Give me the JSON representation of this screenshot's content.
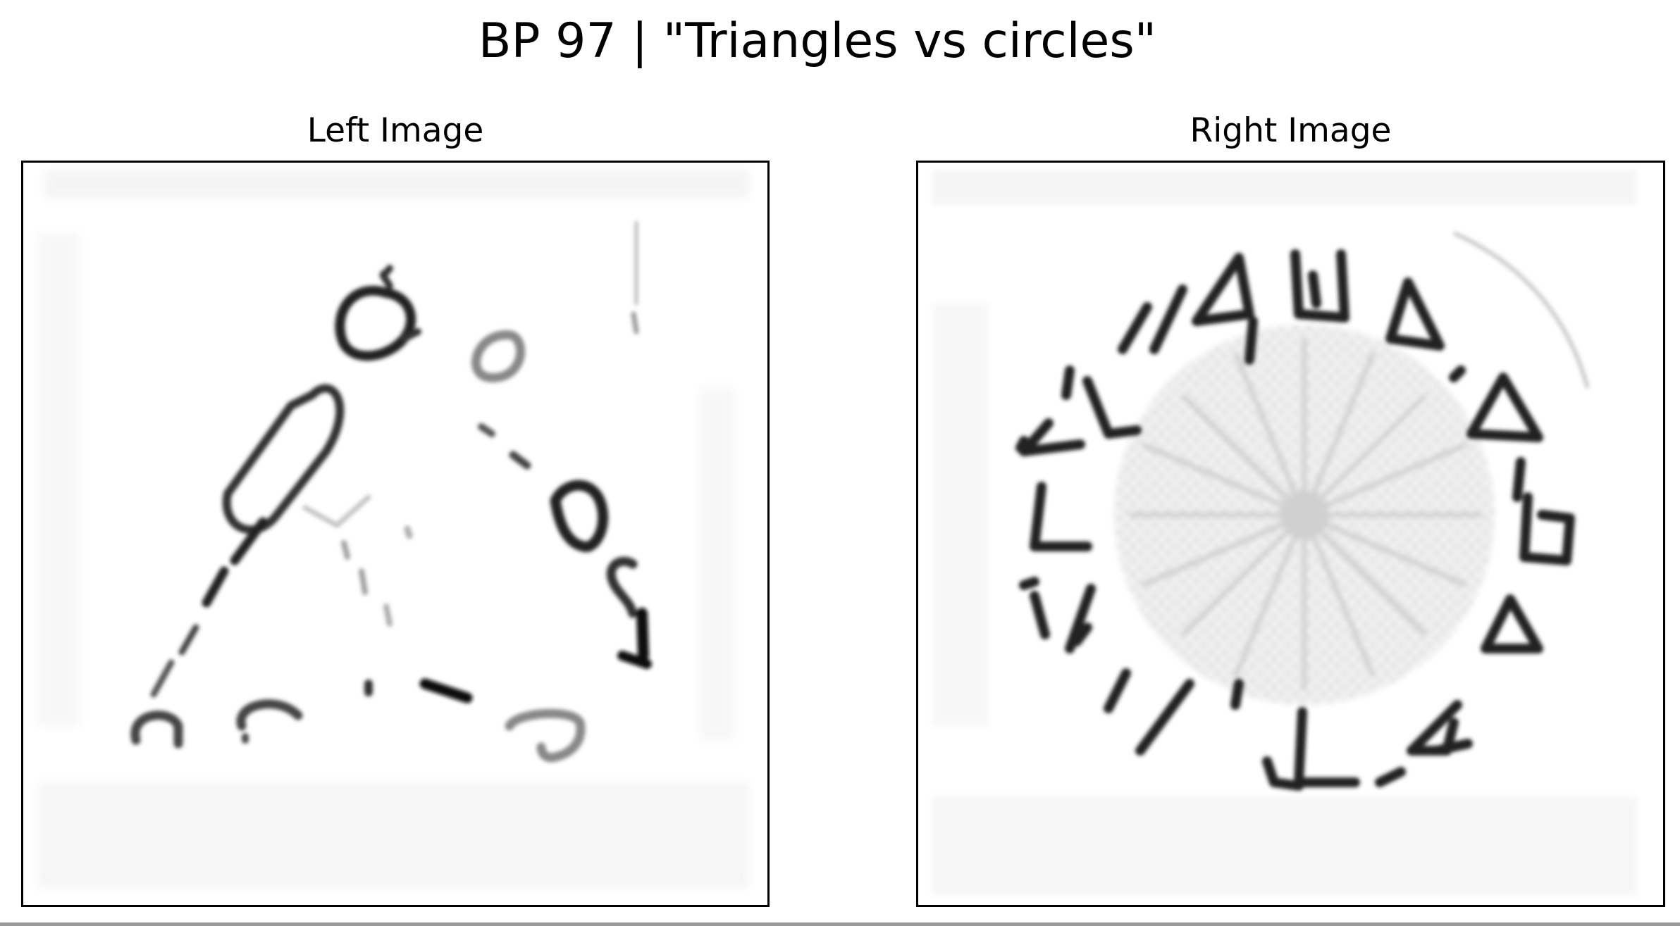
{
  "figure": {
    "title": "BP 97 | \"Triangles vs circles\""
  },
  "panels": [
    {
      "title": "Left Image"
    },
    {
      "title": "Right Image"
    }
  ]
}
